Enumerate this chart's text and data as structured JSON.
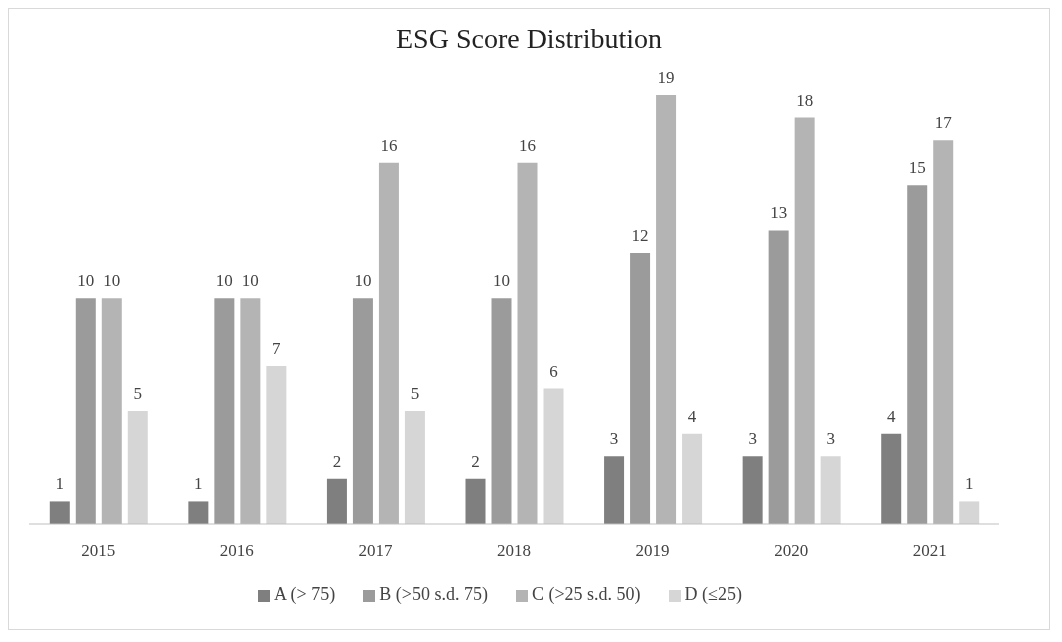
{
  "chart_data": {
    "type": "bar",
    "title": "ESG Score Distribution",
    "categories": [
      "2015",
      "2016",
      "2017",
      "2018",
      "2019",
      "2020",
      "2021"
    ],
    "series": [
      {
        "name": "A (> 75)",
        "color": "#7f7f7f",
        "values": [
          1,
          1,
          2,
          2,
          3,
          3,
          4
        ]
      },
      {
        "name": "B (>50 s.d. 75)",
        "color": "#9b9b9b",
        "values": [
          10,
          10,
          10,
          10,
          12,
          13,
          15
        ]
      },
      {
        "name": "C (>25 s.d. 50)",
        "color": "#b4b4b4",
        "values": [
          10,
          10,
          16,
          16,
          19,
          18,
          17
        ]
      },
      {
        "name": "D (≤25)",
        "color": "#d6d6d6",
        "values": [
          5,
          7,
          5,
          6,
          4,
          3,
          1
        ]
      }
    ],
    "data_labels": true,
    "legend": "bottom",
    "grid": false,
    "tick_labels": "x"
  }
}
